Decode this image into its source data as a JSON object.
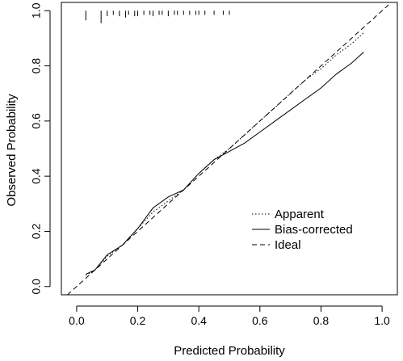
{
  "chart_data": {
    "type": "line",
    "title": "",
    "xlabel": "Predicted Probability",
    "ylabel": "Observed Probability",
    "xlim": [
      -0.05,
      1.05
    ],
    "ylim": [
      -0.03,
      1.03
    ],
    "x_ticks": [
      0.0,
      0.2,
      0.4,
      0.6,
      0.8,
      1.0
    ],
    "x_tick_labels": [
      "0.0",
      "0.2",
      "0.4",
      "0.6",
      "0.8",
      "1.0"
    ],
    "y_ticks": [
      0.0,
      0.2,
      0.4,
      0.6,
      0.8,
      1.0
    ],
    "y_tick_labels": [
      "0.0",
      "0.2",
      "0.4",
      "0.6",
      "0.8",
      "1.0"
    ],
    "grid": false,
    "legend_position": "bottom-right",
    "series": [
      {
        "name": "Apparent",
        "style": "dotted",
        "x": [
          0.03,
          0.06,
          0.1,
          0.15,
          0.2,
          0.25,
          0.3,
          0.35,
          0.4,
          0.45,
          0.5,
          0.55,
          0.6,
          0.65,
          0.7,
          0.75,
          0.8,
          0.85,
          0.9,
          0.94
        ],
        "y": [
          0.04,
          0.06,
          0.11,
          0.15,
          0.21,
          0.27,
          0.31,
          0.35,
          0.41,
          0.46,
          0.5,
          0.55,
          0.6,
          0.65,
          0.7,
          0.75,
          0.79,
          0.84,
          0.88,
          0.92
        ]
      },
      {
        "name": "Bias-corrected",
        "style": "solid",
        "x": [
          0.03,
          0.06,
          0.1,
          0.15,
          0.2,
          0.25,
          0.3,
          0.35,
          0.4,
          0.45,
          0.5,
          0.55,
          0.6,
          0.65,
          0.7,
          0.75,
          0.8,
          0.85,
          0.9,
          0.94
        ],
        "y": [
          0.045,
          0.06,
          0.115,
          0.15,
          0.21,
          0.285,
          0.325,
          0.35,
          0.41,
          0.46,
          0.49,
          0.52,
          0.56,
          0.6,
          0.64,
          0.68,
          0.72,
          0.77,
          0.81,
          0.85
        ]
      },
      {
        "name": "Ideal",
        "style": "dashed",
        "x": [
          -0.05,
          1.05
        ],
        "y": [
          -0.05,
          1.05
        ]
      }
    ],
    "rug": {
      "x": [
        0.03,
        0.08,
        0.1,
        0.12,
        0.14,
        0.16,
        0.17,
        0.19,
        0.2,
        0.22,
        0.24,
        0.25,
        0.27,
        0.28,
        0.3,
        0.32,
        0.33,
        0.35,
        0.37,
        0.39,
        0.4,
        0.42,
        0.45,
        0.48,
        0.5
      ],
      "heights": [
        0.035,
        0.045,
        0.02,
        0.015,
        0.02,
        0.025,
        0.015,
        0.02,
        0.02,
        0.015,
        0.015,
        0.02,
        0.015,
        0.015,
        0.02,
        0.015,
        0.015,
        0.015,
        0.015,
        0.015,
        0.015,
        0.015,
        0.015,
        0.015,
        0.015
      ]
    }
  }
}
